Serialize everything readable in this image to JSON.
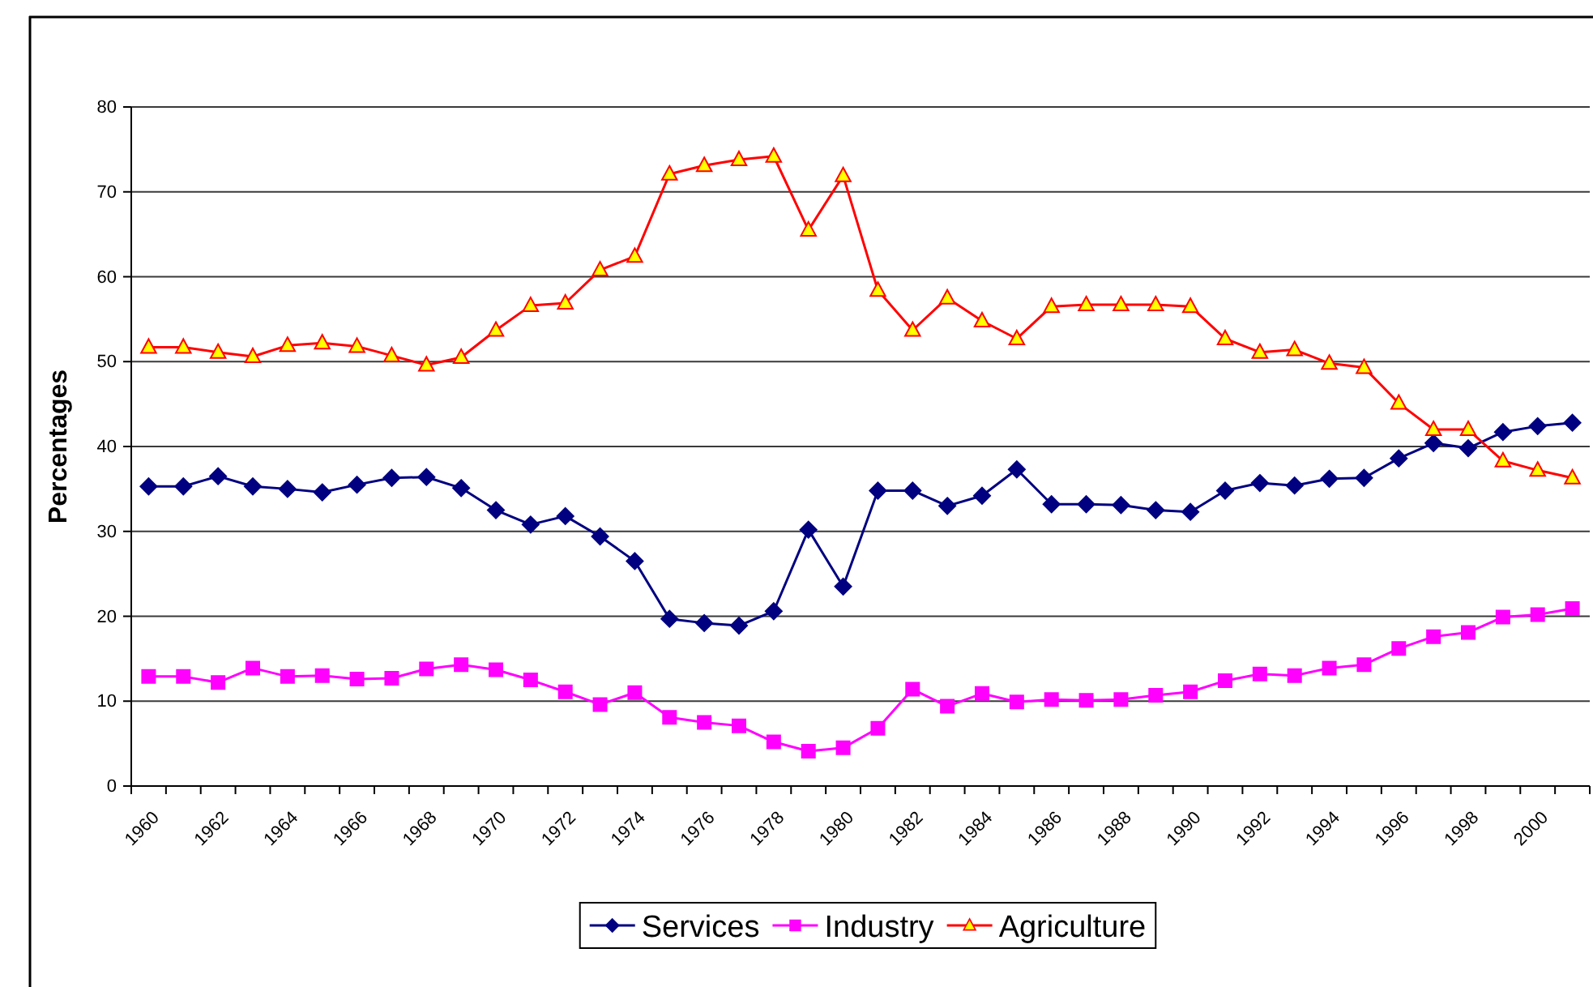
{
  "chart_data": {
    "type": "line",
    "ylabel": "Percentages",
    "categories": [
      "1960",
      null,
      "1962",
      null,
      "1964",
      null,
      "1966",
      null,
      "1968",
      null,
      "1970",
      null,
      "1972",
      null,
      "1974",
      null,
      "1976",
      null,
      "1978",
      null,
      "1980",
      null,
      "1982",
      null,
      "1984",
      null,
      "1986",
      null,
      "1988",
      null,
      "1990",
      null,
      "1992",
      null,
      "1994",
      null,
      "1996",
      null,
      "1998",
      null,
      "2000",
      null
    ],
    "series": [
      {
        "name": "Services",
        "color": "#000080",
        "marker": "diamond",
        "values": [
          35.3,
          35.3,
          36.5,
          35.3,
          35.0,
          34.6,
          35.5,
          36.3,
          36.4,
          35.1,
          32.5,
          30.8,
          31.8,
          29.4,
          26.5,
          19.7,
          19.2,
          18.9,
          20.6,
          30.2,
          23.5,
          34.8,
          34.8,
          33.0,
          34.2,
          37.3,
          33.2,
          33.2,
          33.1,
          32.5,
          32.3,
          34.8,
          35.7,
          35.4,
          36.2,
          36.3,
          38.6,
          40.4,
          39.8,
          41.7,
          42.4,
          42.8
        ]
      },
      {
        "name": "Industry",
        "color": "#ff00ff",
        "marker": "square",
        "values": [
          12.9,
          12.9,
          12.2,
          13.9,
          12.9,
          13.0,
          12.6,
          12.7,
          13.8,
          14.3,
          13.7,
          12.5,
          11.1,
          9.6,
          11.0,
          8.1,
          7.5,
          7.1,
          5.2,
          4.1,
          4.5,
          6.8,
          11.4,
          9.4,
          10.9,
          9.9,
          10.2,
          10.1,
          10.2,
          10.7,
          11.1,
          12.4,
          13.2,
          13.0,
          13.9,
          14.3,
          16.2,
          17.6,
          18.1,
          19.9,
          20.2,
          20.9
        ]
      },
      {
        "name": "Agriculture",
        "color": "#ff0000",
        "marker": "triangle",
        "values": [
          51.7,
          51.7,
          51.1,
          50.6,
          51.9,
          52.2,
          51.8,
          50.7,
          49.6,
          50.5,
          53.7,
          56.6,
          56.9,
          60.8,
          62.4,
          72.1,
          73.1,
          73.8,
          74.2,
          65.5,
          71.9,
          58.4,
          53.7,
          57.5,
          54.8,
          52.7,
          56.5,
          56.7,
          56.7,
          56.7,
          56.5,
          52.7,
          51.1,
          51.4,
          49.8,
          49.3,
          45.1,
          42.0,
          42.0,
          38.3,
          37.2,
          36.3
        ]
      }
    ],
    "ylim": [
      0,
      80
    ],
    "yticks": [
      0,
      10,
      20,
      30,
      40,
      50,
      60,
      70,
      80
    ],
    "grid": "y",
    "legend": "bottom"
  }
}
